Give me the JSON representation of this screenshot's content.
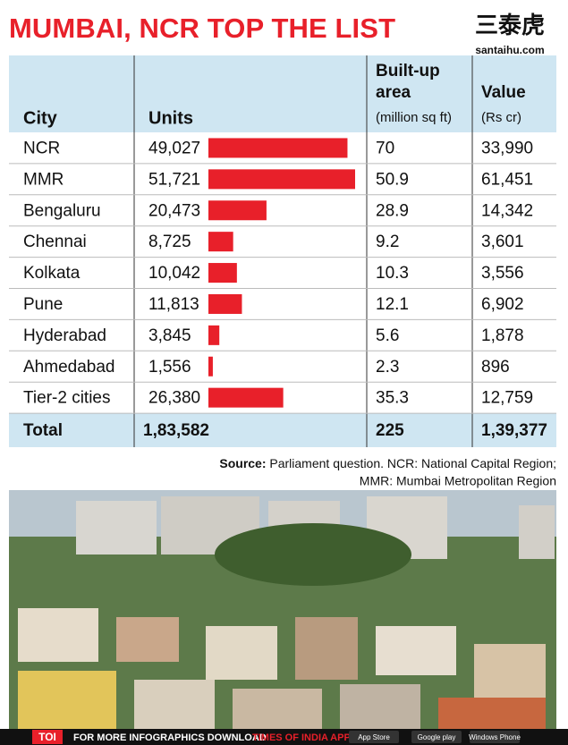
{
  "title": "MUMBAI, NCR TOP THE LIST",
  "logo": {
    "name": "三泰虎",
    "url": "santaihu.com"
  },
  "headers": {
    "city": "City",
    "units": "Units",
    "area": "Built-up area",
    "area_unit": "(million sq ft)",
    "value": "Value",
    "value_unit": "(Rs cr)"
  },
  "chart_data": {
    "type": "bar",
    "categories": [
      "NCR",
      "MMR",
      "Bengaluru",
      "Chennai",
      "Kolkata",
      "Pune",
      "Hyderabad",
      "Ahmedabad",
      "Tier-2 cities"
    ],
    "values": [
      49027,
      51721,
      20473,
      8725,
      10042,
      11813,
      3845,
      1556,
      26380
    ],
    "value_labels": [
      "49,027",
      "51,721",
      "20,473",
      "8,725",
      "10,042",
      "11,813",
      "3,845",
      "1,556",
      "26,380"
    ],
    "color": "#e8202a"
  },
  "area": [
    "70",
    "50.9",
    "28.9",
    "9.2",
    "10.3",
    "12.1",
    "5.6",
    "2.3",
    "35.3"
  ],
  "value": [
    "33,990",
    "61,451",
    "14,342",
    "3,601",
    "3,556",
    "6,902",
    "1,878",
    "896",
    "12,759"
  ],
  "total": {
    "label": "Total",
    "units": "1,83,582",
    "area": "225",
    "value": "1,39,377"
  },
  "source": {
    "label": "Source:",
    "text": "Parliament question. NCR: National Capital Region;",
    "text2": "MMR: Mumbai Metropolitan Region"
  },
  "footer": {
    "brand": "TOI",
    "text": "FOR MORE  INFOGRAPHICS DOWNLOAD",
    "app": "TIMES OF INDIA APP",
    "badges": [
      "App Store",
      "Google play",
      "Windows Phone"
    ]
  }
}
